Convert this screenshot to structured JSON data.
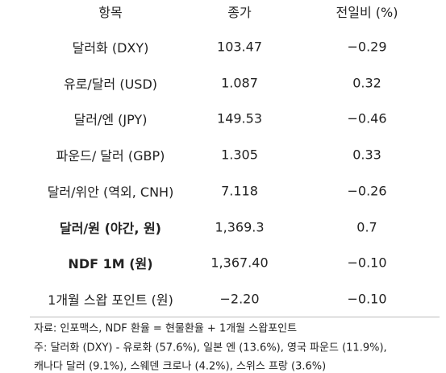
{
  "table": {
    "header": [
      "항목",
      "종가",
      "전일비 (%)"
    ],
    "rows": [
      [
        "달러화 (DXY)",
        "103.47",
        "−0.29"
      ],
      [
        "유로/달러 (USD)",
        "1.087",
        "0.32"
      ],
      [
        "달러/엔 (JPY)",
        "149.53",
        "−0.46"
      ],
      [
        "파운드/ 달러 (GBP)",
        "1.305",
        "0.33"
      ],
      [
        "달러/위안 (역외, CNH)",
        "7.118",
        "−0.26"
      ],
      [
        "달러/원 (야간, 원)",
        "1,369.3",
        "0.7"
      ],
      [
        "NDF 1M (원)",
        "1,367.40",
        "−0.10"
      ],
      [
        "1개월 스왑 포인트 (원)",
        "−2.20",
        "−0.10"
      ]
    ]
  },
  "notes": [
    "자료: 인포맥스, NDF 환율 = 현물환율 + 1개월 스왑포인트",
    "주: 달러화 (DXY) - 유로화 (57.6%), 일본 엔 (13.6%), 영국 파운드 (11.9%),",
    "캐나다 달러 (9.1%), 스웨덴 크로나 (4.2%), 스위스 프랑 (3.6%)"
  ]
}
